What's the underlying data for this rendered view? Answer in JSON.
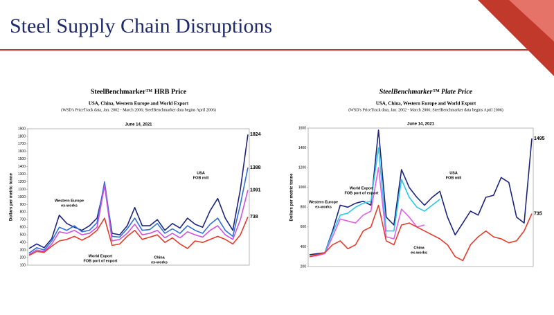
{
  "slide_title": "Steel Supply Chain Disruptions",
  "chart_data": [
    {
      "type": "line",
      "title": "SteelBenchmarker™ HRB Price",
      "subtitle": "USA, China, Western Europe and World Export",
      "note": "(WSD's PriceTrack data, Jan. 2002 - March 2006; SteelBenchmarker data begins April 2006)",
      "date_label": "June 14, 2021",
      "y_label": "Dollars per metric tonne",
      "ylim": [
        100,
        1900
      ],
      "yticks": [
        100,
        200,
        300,
        400,
        500,
        600,
        700,
        800,
        900,
        1000,
        1100,
        1200,
        1300,
        1400,
        1500,
        1600,
        1700,
        1800,
        1900
      ],
      "grid": false,
      "label_last": true,
      "series": [
        {
          "name": "USA",
          "color": "#1a237e",
          "values": [
            320,
            380,
            330,
            450,
            760,
            650,
            600,
            560,
            620,
            720,
            1150,
            520,
            500,
            620,
            860,
            620,
            620,
            700,
            560,
            650,
            590,
            720,
            640,
            600,
            820,
            980,
            720,
            560,
            1100,
            1824
          ]
        },
        {
          "name": "Western Europe",
          "color": "#2e6fd8",
          "values": [
            260,
            330,
            300,
            420,
            600,
            560,
            620,
            540,
            560,
            660,
            1200,
            480,
            470,
            580,
            720,
            560,
            570,
            650,
            520,
            580,
            520,
            620,
            560,
            520,
            640,
            720,
            560,
            480,
            900,
            1388
          ]
        },
        {
          "name": "World Export",
          "color": "#d050e0",
          "values": [
            240,
            300,
            280,
            380,
            540,
            520,
            560,
            500,
            520,
            600,
            1150,
            420,
            440,
            520,
            640,
            500,
            520,
            560,
            460,
            520,
            460,
            540,
            500,
            470,
            560,
            620,
            500,
            440,
            700,
            1091
          ]
        },
        {
          "name": "China",
          "color": "#e53a2a",
          "values": [
            230,
            280,
            270,
            350,
            420,
            440,
            480,
            430,
            480,
            560,
            720,
            360,
            380,
            480,
            560,
            440,
            470,
            500,
            400,
            460,
            380,
            320,
            420,
            400,
            440,
            480,
            440,
            380,
            500,
            738
          ]
        }
      ],
      "annotations": [
        [
          "USA",
          "FOB mill"
        ],
        [
          "Western Europe",
          "ex-works"
        ],
        [
          "World Export",
          "FOB port of export"
        ],
        [
          "China",
          "ex-works"
        ]
      ]
    },
    {
      "type": "line",
      "title": "SteelBenchmarker™ Plate Price",
      "subtitle": "USA, China, Western Europe and World Export",
      "note": "(WSD's PriceTrack data, Jan. 2002 - March 2006; SteelBenchmarker data begins April 2006)",
      "date_label": "June 14, 2021",
      "y_label": "Dollars per metric tonne",
      "ylim": [
        200,
        1600
      ],
      "yticks": [
        200,
        400,
        600,
        800,
        1000,
        1200,
        1400,
        1600
      ],
      "grid": false,
      "label_last": true,
      "series": [
        {
          "name": "USA",
          "color": "#1a237e",
          "values": [
            320,
            330,
            340,
            560,
            820,
            800,
            840,
            860,
            820,
            1580,
            700,
            620,
            1180,
            1000,
            900,
            820,
            900,
            960,
            700,
            520,
            640,
            760,
            720,
            900,
            920,
            1100,
            1050,
            700,
            640,
            1495
          ]
        },
        {
          "name": "Western Europe",
          "color": "#28c8e8",
          "values": [
            300,
            320,
            340,
            540,
            720,
            740,
            800,
            840,
            860,
            1400,
            560,
            560,
            1080,
            900,
            800,
            760,
            820,
            880,
            null,
            null,
            null,
            null,
            null,
            null,
            null,
            null,
            null,
            null,
            null,
            null
          ]
        },
        {
          "name": "World Export",
          "color": "#e060e8",
          "values": [
            300,
            310,
            330,
            500,
            680,
            660,
            640,
            720,
            760,
            1200,
            500,
            480,
            780,
            700,
            600,
            620,
            null,
            null,
            null,
            null,
            null,
            null,
            null,
            null,
            null,
            null,
            null,
            null,
            null,
            null
          ]
        },
        {
          "name": "China",
          "color": "#e53a2a",
          "values": [
            300,
            320,
            340,
            420,
            460,
            380,
            420,
            560,
            600,
            820,
            460,
            420,
            620,
            640,
            600,
            560,
            520,
            480,
            420,
            300,
            260,
            420,
            500,
            560,
            500,
            480,
            440,
            460,
            560,
            735
          ]
        }
      ],
      "annotations": [
        [
          "USA",
          "FOB mill"
        ],
        [
          "World Export",
          "FOB port of export"
        ],
        [
          "Western Europe",
          "ex-works"
        ],
        [
          "China",
          "ex-works"
        ]
      ]
    }
  ]
}
